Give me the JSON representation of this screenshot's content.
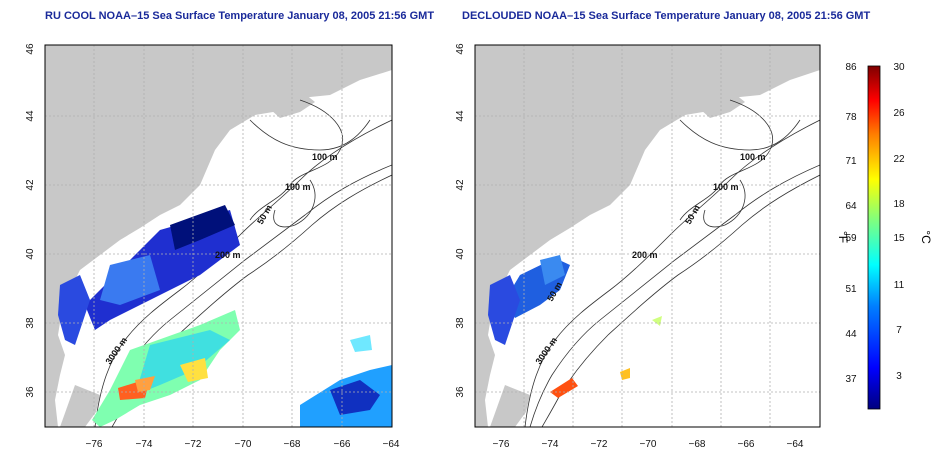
{
  "panels": [
    {
      "title": "RU COOL NOAA–15 Sea Surface Temperature January 08, 2005 21:56 GMT",
      "contours": [
        "100 m",
        "100 m",
        "50 m",
        "200 m",
        "3000 m"
      ]
    },
    {
      "title": "DECLOUDED NOAA–15 Sea Surface Temperature January 08, 2005 21:56 GMT",
      "contours": [
        "100 m",
        "100 m",
        "50 m",
        "200 m",
        "50 m",
        "3000 m"
      ]
    }
  ],
  "axes": {
    "x_ticks": [
      "−76",
      "−74",
      "−72",
      "−70",
      "−68",
      "−66",
      "−64"
    ],
    "y_ticks": [
      "36",
      "38",
      "40",
      "42",
      "44",
      "46"
    ]
  },
  "colorbar": {
    "f_label": "°F",
    "c_label": "°C",
    "f_ticks": [
      "86",
      "78",
      "71",
      "64",
      "59",
      "51",
      "44",
      "37"
    ],
    "c_ticks": [
      "30",
      "26",
      "22",
      "18",
      "15",
      "11",
      "7",
      "3"
    ],
    "colors": [
      "#00007f",
      "#0000ff",
      "#007fff",
      "#00ffff",
      "#7fff7f",
      "#ffff00",
      "#ff7f00",
      "#ff0000",
      "#7f0000"
    ]
  },
  "colors": {
    "land": "#c8c8c8",
    "title": "#1a2a9a",
    "grid": "#b0b0b0"
  }
}
